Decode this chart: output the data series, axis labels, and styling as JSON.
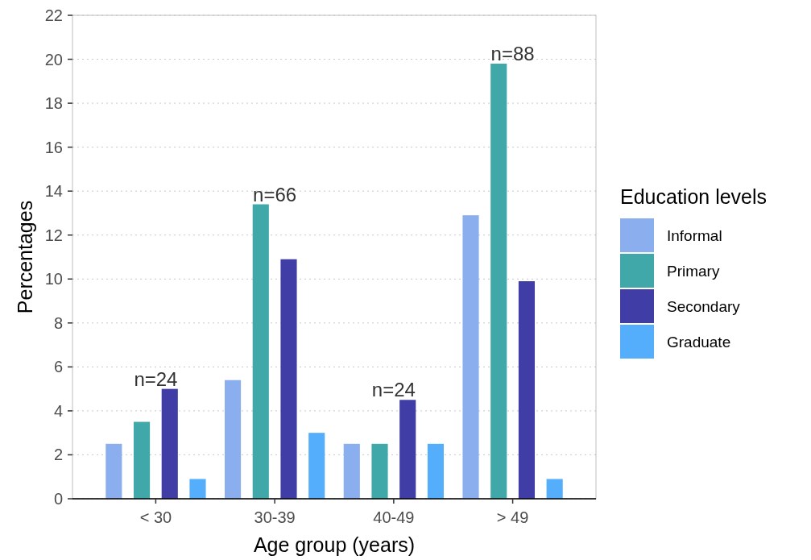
{
  "chart_data": {
    "type": "bar",
    "xlabel": "Age group (years)",
    "ylabel": "Percentages",
    "legend_title": "Education levels",
    "categories": [
      "< 30",
      "30-39",
      "40-49",
      "> 49"
    ],
    "series": [
      {
        "name": "Informal",
        "color": "#8aaeee",
        "values": [
          2.5,
          5.4,
          2.5,
          12.9
        ]
      },
      {
        "name": "Primary",
        "color": "#40a8a8",
        "values": [
          3.5,
          13.4,
          2.5,
          19.8
        ]
      },
      {
        "name": "Secondary",
        "color": "#403ea6",
        "values": [
          5.0,
          10.9,
          4.5,
          9.9
        ]
      },
      {
        "name": "Graduate",
        "color": "#55aefc",
        "values": [
          0.9,
          3.0,
          2.5,
          0.9
        ]
      }
    ],
    "ylim": [
      0,
      22
    ],
    "yticks": [
      0,
      2,
      4,
      6,
      8,
      10,
      12,
      14,
      16,
      18,
      20,
      22
    ],
    "grid": "y",
    "legend": "right",
    "annotations": [
      "n=24",
      "n=66",
      "n=24",
      "n=88"
    ]
  }
}
